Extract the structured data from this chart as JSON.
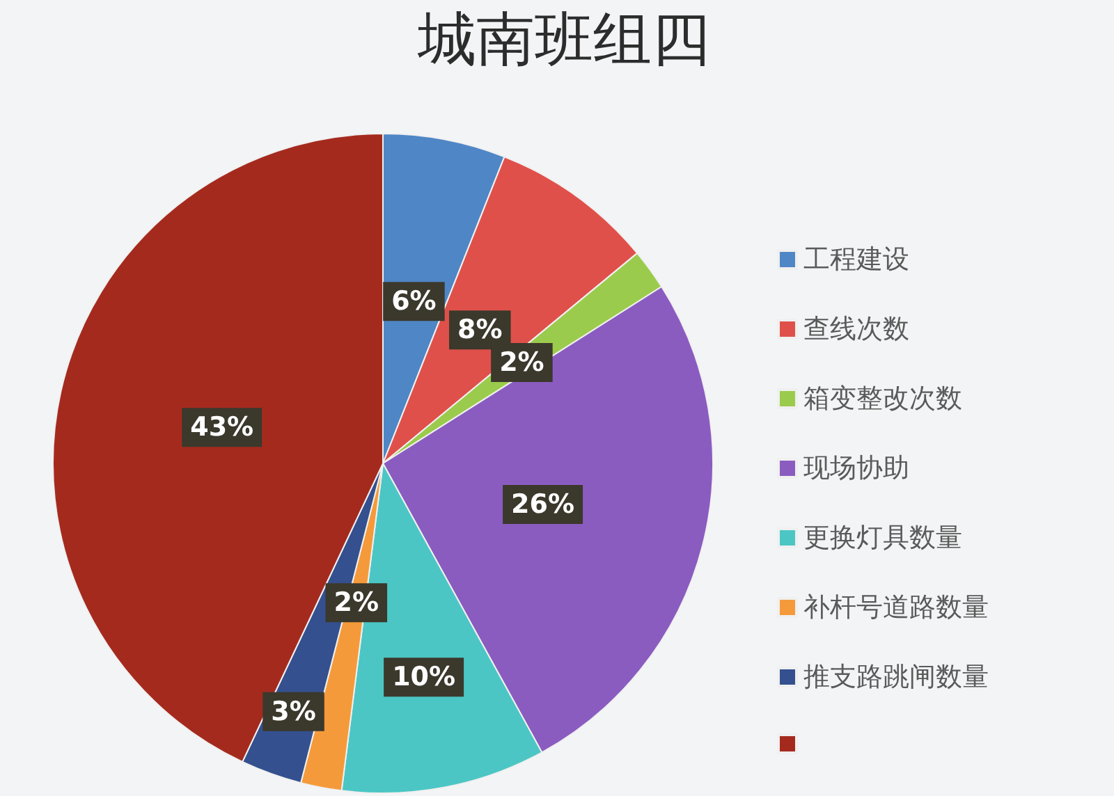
{
  "chart_data": {
    "type": "pie",
    "title": "城南班组四",
    "categories": [
      "工程建设",
      "查线次数",
      "箱变整改次数",
      "现场协助",
      "更换灯具数量",
      "补杆号道路数量",
      "推支路跳闸数量",
      null
    ],
    "values": [
      6,
      8,
      2,
      26,
      10,
      2,
      3,
      43
    ],
    "colors": [
      "#4f86c6",
      "#e0504a",
      "#9bcb4c",
      "#8a5cc0",
      "#4bc6c4",
      "#f59a3a",
      "#34508e",
      "#a52a1e"
    ],
    "value_labels": [
      "6%",
      "8%",
      "2%",
      "26%",
      "10%",
      "2%",
      "3%",
      "43%"
    ],
    "legend": "right"
  }
}
